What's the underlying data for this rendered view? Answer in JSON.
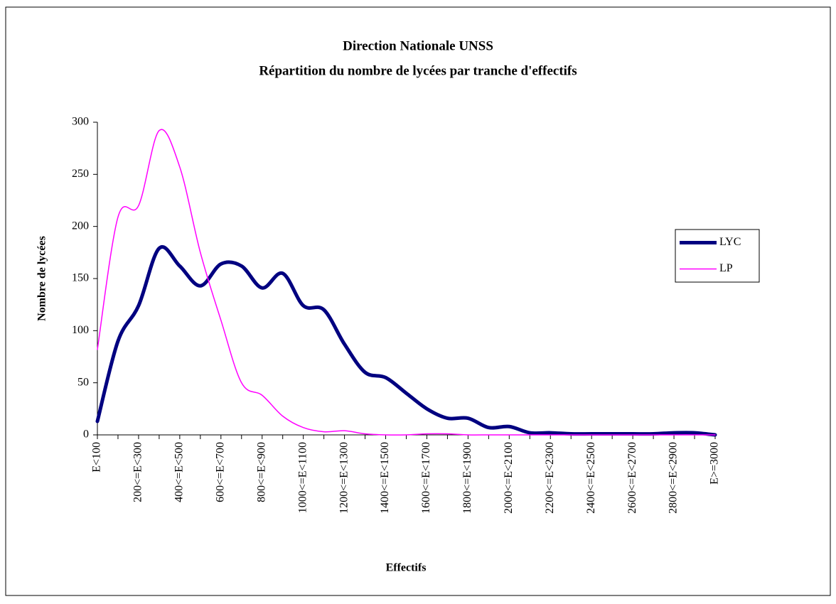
{
  "chart_data": {
    "type": "line",
    "title": "Direction Nationale UNSS",
    "subtitle": "Répartition du nombre de lycées par tranche d'effectifs",
    "x_label": "Effectifs",
    "y_label": "Nombre de lycées",
    "categories": [
      "E<100",
      null,
      "200<=E<300",
      null,
      "400<=E<500",
      null,
      "600<=E<700",
      null,
      "800<=E<900",
      null,
      "1000<=E<1100",
      null,
      "1200<=E<1300",
      null,
      "1400<=E<1500",
      null,
      "1600<=E<1700",
      null,
      "1800<=E<1900",
      null,
      "2000<=E<2100",
      null,
      "2200<=E<2300",
      null,
      "2400<=E<2500",
      null,
      "2600<=E<2700",
      null,
      "2800<=E<2900",
      null,
      "E>=3000"
    ],
    "series": [
      {
        "name": "LYC",
        "color": "#000080",
        "values": [
          13,
          90,
          124,
          179,
          162,
          143,
          164,
          162,
          141,
          155,
          124,
          120,
          87,
          60,
          55,
          40,
          25,
          16,
          16,
          7,
          8,
          2,
          2,
          1,
          1,
          1,
          1,
          1,
          2,
          2,
          0
        ]
      },
      {
        "name": "LP",
        "color": "#ff00ff",
        "values": [
          82,
          209,
          220,
          292,
          257,
          175,
          110,
          50,
          38,
          18,
          7,
          3,
          4,
          1,
          0,
          0,
          1,
          1,
          0,
          0,
          0,
          0,
          0,
          0,
          0,
          0,
          0,
          0,
          0,
          0,
          0
        ]
      }
    ],
    "ylim": [
      0,
      300
    ],
    "yticks": [
      0,
      50,
      100,
      150,
      200,
      250,
      300
    ],
    "grid": false,
    "legend": "right"
  }
}
